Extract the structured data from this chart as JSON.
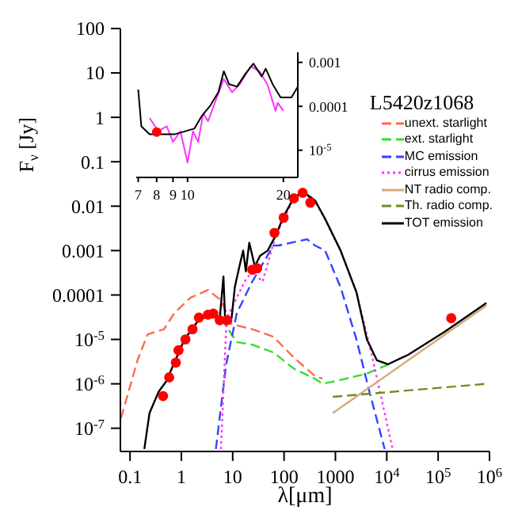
{
  "chart_data": [
    {
      "type": "line",
      "xlabel": "λ[μm]",
      "ylabel": "F$_{ν}$ [Jy]",
      "log": "xy",
      "xlim": [
        0.065,
        1000000
      ],
      "ylim": [
        3e-08,
        100
      ],
      "xticks": [
        0.1,
        1,
        10,
        100,
        1000,
        {
          "value": 10000,
          "label": "10$^{4}$"
        },
        {
          "value": 100000,
          "label": "10$^{5}$"
        },
        {
          "value": 1000000,
          "label": "10$^{6}$"
        }
      ],
      "yticks": [
        {
          "value": 1e-07,
          "label": "10$^{-7}$"
        },
        {
          "value": 1e-06,
          "label": "10$^{-6}$"
        },
        {
          "value": 1e-05,
          "label": "10$^{-5}$"
        },
        0.0001,
        0.001,
        0.01,
        0.1,
        1,
        10,
        100
      ],
      "legend": "top right",
      "legend_title": "L5420z1068",
      "grid": false,
      "series": [
        {
          "name": "unext. starlight",
          "color": "#ff6a4d",
          "line_style": "dashed",
          "x": [
            0.067,
            0.14,
            0.22,
            0.46,
            0.73,
            1.5,
            3.3,
            5.9,
            9.5,
            24,
            62,
            155,
            400,
            560
          ],
          "values": [
            1.7e-07,
            3.4e-06,
            1.3e-05,
            1.7e-05,
            3.9e-05,
            8.7e-05,
            0.00013,
            7.6e-05,
            2.2e-05,
            1.7e-05,
            1.15e-05,
            3.9e-06,
            1.5e-06,
            1.3e-06
          ]
        },
        {
          "name": "ext. starlight",
          "color": "#33dd33",
          "line_style": "dashed",
          "x": [
            5.9,
            12,
            24,
            62,
            155,
            400,
            560,
            1000,
            4100,
            13000
          ],
          "values": [
            3e-05,
            8.7e-06,
            7.6e-06,
            5.1e-06,
            2.2e-06,
            1.3e-06,
            1e-06,
            1.15e-06,
            1.7e-06,
            3e-06
          ]
        },
        {
          "name": "MC emission",
          "color": "#3344ff",
          "line_style": "dashed",
          "x": [
            4.7,
            7.4,
            12,
            24,
            62,
            78,
            280,
            400,
            630,
            1260,
            2570,
            4600,
            9100
          ],
          "values": [
            3.4e-08,
            2.6e-06,
            3.9e-05,
            0.0002,
            0.0013,
            0.0013,
            0.0018,
            0.0013,
            0.001,
            0.00015,
            1e-05,
            6.6e-07,
            3.4e-08
          ]
        },
        {
          "name": "cirrus emission",
          "color": "#ff33ff",
          "line_style": "dotted",
          "x": [
            5.9,
            7.6,
            10.7,
            17,
            24,
            38,
            69,
            155,
            234,
            400,
            630,
            1260,
            2570,
            5100,
            9100,
            13000
          ],
          "values": [
            3.4e-08,
            3e-05,
            6.6e-05,
            0.0002,
            0.00034,
            0.0002,
            0.0022,
            0.015,
            0.02,
            0.013,
            0.005,
            0.001,
            0.000115,
            4.5e-06,
            2.2e-07,
            3.4e-08
          ]
        },
        {
          "name": "NT radio comp.",
          "color": "#d2aa7a",
          "line_style": "solid",
          "x": [
            890,
            870000
          ],
          "values": [
            2.2e-07,
            5.8e-05
          ]
        },
        {
          "name": "Th. radio comp.",
          "color": "#6b8e23",
          "line_style": "dashed",
          "x": [
            890,
            870000
          ],
          "values": [
            5.1e-07,
            1e-06
          ]
        },
        {
          "name": "TOT emission",
          "color": "#000000",
          "line_style": "solid",
          "x": [
            0.19,
            0.24,
            0.36,
            0.51,
            0.73,
            1.15,
            2.1,
            4.2,
            5.6,
            6.6,
            7.1,
            9.5,
            11,
            13.5,
            16,
            18,
            21,
            27,
            34,
            48,
            69,
            98,
            155,
            234,
            400,
            630,
            1260,
            2570,
            4100,
            6400,
            10500,
            26000,
            135000,
            870000
          ],
          "values": [
            3.4e-08,
            2.2e-07,
            6.6e-07,
            1.15e-06,
            3e-06,
            1e-05,
            2.6e-05,
            3.9e-05,
            3e-05,
            0.00026,
            3e-05,
            3e-05,
            0.00015,
            0.00044,
            0.001,
            0.00034,
            0.0015,
            0.00044,
            0.00076,
            0.001,
            0.0022,
            0.0059,
            0.0155,
            0.021,
            0.0135,
            0.0052,
            0.001,
            0.000115,
            1e-05,
            3.4e-06,
            2.75e-06,
            4.5e-06,
            1.5e-05,
            6.6e-05
          ]
        },
        {
          "type": "scatter",
          "marker": "circle",
          "color": "#ff0000",
          "x": [
            0.44,
            0.58,
            0.78,
            0.88,
            1.2,
            1.65,
            2.2,
            3.3,
            4.2,
            5.6,
            7.8,
            24,
            30,
            65,
            98,
            155,
            230,
            325,
            180000
          ],
          "values": [
            5.3e-07,
            1.4e-06,
            3e-06,
            5.7e-06,
            1e-05,
            1.7e-05,
            3.1e-05,
            3.6e-05,
            3.8e-05,
            2.7e-05,
            2.7e-05,
            0.00037,
            0.0004,
            0.0025,
            0.0055,
            0.015,
            0.02,
            0.012,
            3e-05
          ]
        }
      ]
    },
    {
      "type": "line",
      "log": "xy",
      "xlim": [
        6.9,
        22.2
      ],
      "ylim": [
        2.4e-06,
        0.0017
      ],
      "xticks": [
        7,
        8,
        9,
        10,
        20
      ],
      "yticks": [
        {
          "value": 1e-05,
          "label": "10$^{-5}$"
        },
        0.0001,
        0.001
      ],
      "grid": false,
      "series": [
        {
          "color": "#ff33ff",
          "line_style": "solid",
          "x": [
            7.6,
            8.1,
            8.6,
            9.0,
            9.5,
            10,
            10.4,
            10.8,
            11.2,
            11.6,
            12.1,
            13,
            13.8,
            14.6,
            15.8,
            16.8,
            17.8,
            18.9,
            19.2,
            20
          ],
          "values": [
            5.4e-05,
            2.7e-05,
            3.5e-05,
            1.55e-05,
            2.7e-05,
            5.2e-06,
            2.7e-05,
            1.55e-05,
            6.9e-05,
            4.6e-05,
            0.000105,
            0.00042,
            0.00021,
            0.00032,
            0.00082,
            0.00063,
            0.00032,
            7.9e-05,
            0.00012,
            7.9e-05
          ]
        },
        {
          "color": "#000000",
          "line_style": "solid",
          "x": [
            7.0,
            7.16,
            7.6,
            9.1,
            10.5,
            11.1,
            11.8,
            12.5,
            13,
            13.5,
            14.3,
            15.2,
            16.1,
            17.1,
            17.6,
            18.5,
            19.6,
            21.2,
            22.2
          ],
          "values": [
            0.00024,
            3.5e-05,
            2.3e-05,
            2.3e-05,
            3.1e-05,
            6.1e-05,
            0.000105,
            0.00021,
            0.00063,
            0.00032,
            0.00028,
            0.00055,
            0.00094,
            0.00048,
            0.00072,
            0.00032,
            0.00016,
            0.00016,
            0.00028
          ]
        },
        {
          "type": "scatter",
          "marker": "circle",
          "color": "#ff0000",
          "x": [
            8
          ],
          "values": [
            2.6e-05
          ]
        }
      ]
    }
  ]
}
